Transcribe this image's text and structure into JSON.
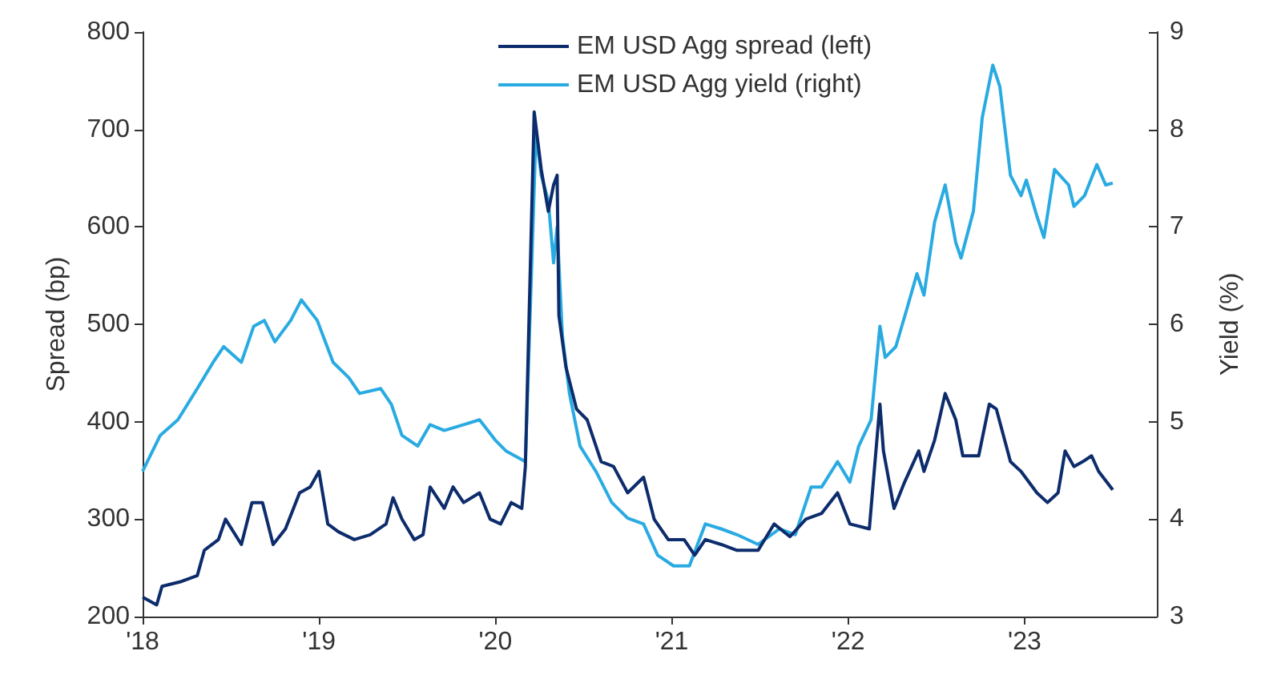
{
  "chart_data": {
    "type": "line",
    "ylabel": "Spread (bp)",
    "y2label": "Yield (%)",
    "xlim": [
      2018,
      2023.75
    ],
    "xticks": [
      {
        "value": 2018,
        "label": "'18"
      },
      {
        "value": 2019,
        "label": "'19"
      },
      {
        "value": 2020,
        "label": "'20"
      },
      {
        "value": 2021,
        "label": "'21"
      },
      {
        "value": 2022,
        "label": "'22"
      },
      {
        "value": 2023,
        "label": "'23"
      }
    ],
    "ylim": [
      200,
      800
    ],
    "yticks": [
      200,
      300,
      400,
      500,
      600,
      700,
      800
    ],
    "y2lim": [
      3,
      9
    ],
    "y2ticks": [
      3,
      4,
      5,
      6,
      7,
      8,
      9
    ],
    "grid": false,
    "legend": "top",
    "marker": "none",
    "line_style": "solid",
    "series": [
      {
        "name": "EM USD Agg spread (left)",
        "color": "#0d2c6c",
        "x": [
          2018.0,
          2018.08,
          2018.11,
          2018.22,
          2018.31,
          2018.35,
          2018.43,
          2018.47,
          2018.56,
          2018.62,
          2018.68,
          2018.74,
          2018.81,
          2018.89,
          2018.95,
          2019.0,
          2019.05,
          2019.11,
          2019.2,
          2019.29,
          2019.38,
          2019.42,
          2019.47,
          2019.54,
          2019.59,
          2019.63,
          2019.71,
          2019.76,
          2019.82,
          2019.91,
          2019.97,
          2020.03,
          2020.09,
          2020.15,
          2020.17,
          2020.22,
          2020.26,
          2020.3,
          2020.33,
          2020.35,
          2020.36,
          2020.4,
          2020.46,
          2020.52,
          2020.6,
          2020.67,
          2020.75,
          2020.84,
          2020.9,
          2020.98,
          2021.07,
          2021.13,
          2021.19,
          2021.28,
          2021.37,
          2021.49,
          2021.58,
          2021.67,
          2021.76,
          2021.85,
          2021.94,
          2022.01,
          2022.12,
          2022.18,
          2022.2,
          2022.26,
          2022.32,
          2022.4,
          2022.43,
          2022.49,
          2022.55,
          2022.61,
          2022.65,
          2022.74,
          2022.8,
          2022.84,
          2022.92,
          2022.98,
          2023.07,
          2023.13,
          2023.19,
          2023.23,
          2023.28,
          2023.33,
          2023.38,
          2023.42,
          2023.5
        ],
        "values": [
          220,
          212,
          231,
          236,
          242,
          268,
          279,
          300,
          274,
          317,
          317,
          274,
          290,
          327,
          333,
          349,
          295,
          287,
          279,
          284,
          295,
          322,
          300,
          279,
          284,
          333,
          311,
          333,
          317,
          327,
          300,
          295,
          317,
          311,
          354,
          718,
          659,
          616,
          643,
          653,
          509,
          456,
          413,
          402,
          359,
          354,
          327,
          343,
          300,
          279,
          279,
          263,
          279,
          274,
          268,
          268,
          295,
          282,
          300,
          306,
          327,
          295,
          290,
          418,
          370,
          311,
          338,
          370,
          349,
          381,
          429,
          402,
          365,
          365,
          418,
          413,
          359,
          349,
          327,
          317,
          327,
          370,
          354,
          359,
          365,
          349,
          330
        ]
      },
      {
        "name": "EM USD Agg yield (right)",
        "color": "#29abe2",
        "axis": "y2",
        "x": [
          2018.0,
          2018.1,
          2018.2,
          2018.31,
          2018.4,
          2018.46,
          2018.56,
          2018.63,
          2018.69,
          2018.75,
          2018.84,
          2018.9,
          2018.99,
          2019.08,
          2019.17,
          2019.23,
          2019.35,
          2019.41,
          2019.47,
          2019.56,
          2019.63,
          2019.71,
          2019.82,
          2019.91,
          2020.0,
          2020.06,
          2020.17,
          2020.23,
          2020.26,
          2020.3,
          2020.33,
          2020.35,
          2020.38,
          2020.42,
          2020.48,
          2020.57,
          2020.66,
          2020.75,
          2020.84,
          2020.92,
          2021.01,
          2021.1,
          2021.19,
          2021.28,
          2021.37,
          2021.49,
          2021.61,
          2021.7,
          2021.79,
          2021.85,
          2021.94,
          2022.01,
          2022.06,
          2022.13,
          2022.18,
          2022.21,
          2022.27,
          2022.33,
          2022.39,
          2022.43,
          2022.49,
          2022.55,
          2022.61,
          2022.64,
          2022.71,
          2022.76,
          2022.82,
          2022.86,
          2022.92,
          2022.98,
          2023.01,
          2023.07,
          2023.11,
          2023.17,
          2023.25,
          2023.28,
          2023.34,
          2023.41,
          2023.46,
          2023.5
        ],
        "values": [
          4.49,
          4.86,
          5.02,
          5.34,
          5.61,
          5.77,
          5.61,
          5.98,
          6.04,
          5.82,
          6.04,
          6.25,
          6.04,
          5.61,
          5.45,
          5.29,
          5.34,
          5.18,
          4.86,
          4.75,
          4.97,
          4.91,
          4.97,
          5.02,
          4.81,
          4.7,
          4.59,
          7.96,
          7.53,
          7.27,
          6.63,
          7.0,
          5.88,
          5.29,
          4.75,
          4.49,
          4.17,
          4.01,
          3.95,
          3.63,
          3.52,
          3.52,
          3.95,
          3.9,
          3.84,
          3.74,
          3.9,
          3.84,
          4.33,
          4.33,
          4.59,
          4.38,
          4.75,
          5.02,
          5.98,
          5.66,
          5.77,
          6.14,
          6.52,
          6.3,
          7.05,
          7.43,
          6.84,
          6.68,
          7.16,
          8.12,
          8.66,
          8.44,
          7.53,
          7.32,
          7.48,
          7.11,
          6.89,
          7.59,
          7.43,
          7.21,
          7.32,
          7.64,
          7.43,
          7.45
        ]
      }
    ]
  }
}
